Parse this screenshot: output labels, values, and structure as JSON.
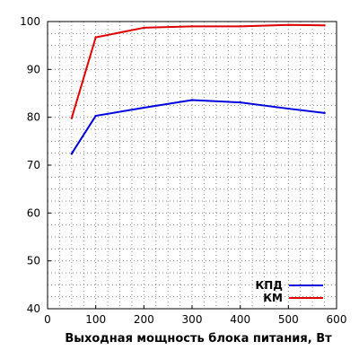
{
  "chart_data": {
    "type": "line",
    "title": "",
    "xlabel": "Выходная мощность блока питания, Вт",
    "ylabel": "",
    "xlim": [
      0,
      600
    ],
    "ylim": [
      40,
      100
    ],
    "x_ticks": [
      0,
      100,
      200,
      300,
      400,
      500,
      600
    ],
    "y_ticks": [
      40,
      50,
      60,
      70,
      80,
      90,
      100
    ],
    "grid": true,
    "grid_style": "dotted",
    "legend_position": "bottom-right",
    "series": [
      {
        "name": "КПД",
        "color": "#0000dd",
        "x": [
          50,
          100,
          200,
          300,
          400,
          500,
          575
        ],
        "y": [
          72.4,
          80.3,
          82.0,
          83.6,
          83.1,
          81.8,
          80.9
        ]
      },
      {
        "name": "КМ",
        "color": "#dd0000",
        "x": [
          50,
          100,
          200,
          300,
          400,
          500,
          575
        ],
        "y": [
          79.8,
          96.7,
          98.7,
          99.0,
          99.0,
          99.3,
          99.2
        ]
      }
    ]
  }
}
